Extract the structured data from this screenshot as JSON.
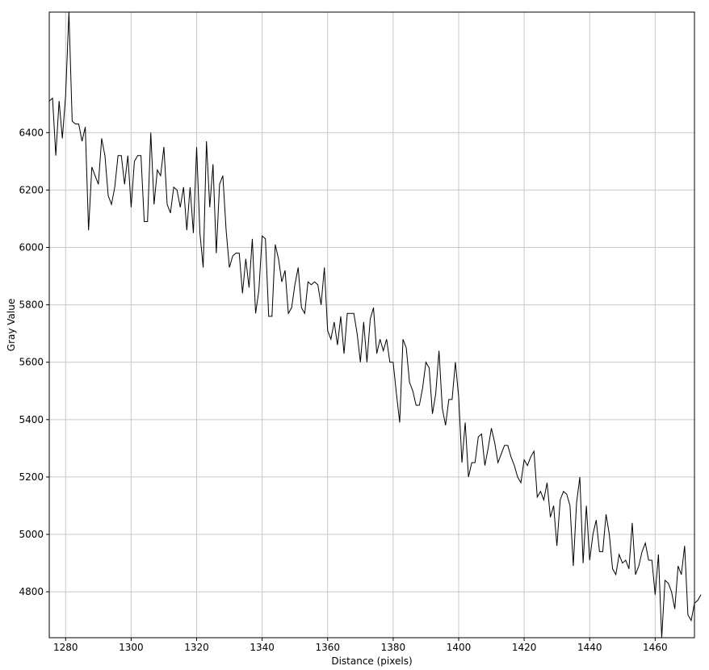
{
  "chart_data": {
    "type": "line",
    "title": "",
    "xlabel": "Distance (pixels)",
    "ylabel": "Gray Value",
    "xlim": [
      1275,
      1472
    ],
    "ylim": [
      4640,
      6820
    ],
    "grid": true,
    "x_ticks": [
      1280,
      1300,
      1320,
      1340,
      1360,
      1380,
      1400,
      1420,
      1440,
      1460
    ],
    "y_ticks": [
      4800,
      5000,
      5200,
      5400,
      5600,
      5800,
      6000,
      6200,
      6400
    ],
    "x_start": 1275,
    "x_step": 1,
    "series": [
      {
        "values": [
          6510,
          6520,
          6320,
          6510,
          6380,
          6530,
          6820,
          6440,
          6430,
          6430,
          6370,
          6420,
          6060,
          6280,
          6250,
          6220,
          6380,
          6320,
          6180,
          6150,
          6210,
          6320,
          6320,
          6220,
          6320,
          6140,
          6300,
          6320,
          6320,
          6090,
          6090,
          6400,
          6150,
          6270,
          6250,
          6350,
          6150,
          6120,
          6210,
          6200,
          6140,
          6210,
          6060,
          6210,
          6050,
          6350,
          6050,
          5930,
          6370,
          6140,
          6290,
          5980,
          6220,
          6250,
          6060,
          5930,
          5970,
          5980,
          5980,
          5840,
          5960,
          5860,
          6030,
          5770,
          5850,
          6040,
          6030,
          5760,
          5760,
          6010,
          5960,
          5880,
          5920,
          5770,
          5790,
          5870,
          5930,
          5790,
          5770,
          5880,
          5870,
          5880,
          5870,
          5800,
          5930,
          5710,
          5680,
          5740,
          5660,
          5760,
          5630,
          5770,
          5770,
          5770,
          5700,
          5600,
          5740,
          5600,
          5750,
          5790,
          5630,
          5680,
          5640,
          5680,
          5600,
          5600,
          5490,
          5390,
          5680,
          5650,
          5530,
          5500,
          5450,
          5450,
          5510,
          5600,
          5580,
          5420,
          5490,
          5640,
          5440,
          5380,
          5470,
          5470,
          5600,
          5480,
          5250,
          5390,
          5200,
          5250,
          5250,
          5340,
          5350,
          5240,
          5300,
          5370,
          5320,
          5250,
          5280,
          5310,
          5310,
          5270,
          5240,
          5200,
          5180,
          5260,
          5240,
          5270,
          5290,
          5130,
          5150,
          5120,
          5180,
          5060,
          5100,
          4960,
          5120,
          5150,
          5140,
          5100,
          4890,
          5110,
          5200,
          4900,
          5100,
          4910,
          5000,
          5050,
          4940,
          4940,
          5070,
          5000,
          4880,
          4860,
          4930,
          4900,
          4910,
          4880,
          5040,
          4860,
          4890,
          4940,
          4970,
          4910,
          4910,
          4790,
          4930,
          4640,
          4840,
          4830,
          4800,
          4740,
          4890,
          4860,
          4960,
          4720,
          4700,
          4760,
          4770,
          4790
        ]
      }
    ]
  }
}
